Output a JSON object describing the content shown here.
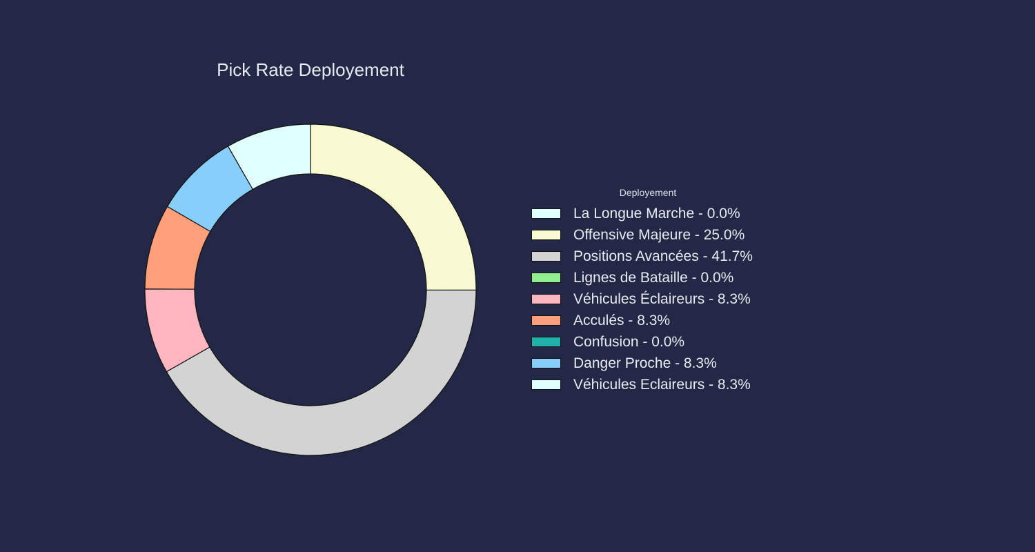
{
  "chart_data": {
    "type": "pie",
    "style": "donut",
    "title": "Pick Rate Deployement",
    "legend_title": "Deployement",
    "legend_position": "right",
    "start_angle_deg": 90,
    "direction": "clockwise",
    "background_color": "#222845",
    "edge_color": "#111111",
    "labels": [
      "La Longue Marche - 0.0%",
      "Offensive Majeure - 25.0%",
      "Positions Avancées - 41.7%",
      "Lignes de Bataille - 0.0%",
      "Véhicules Éclaireurs - 8.3%",
      "Acculés - 8.3%",
      "Confusion - 0.0%",
      "Danger Proche - 8.3%",
      "Véhicules Eclaireurs - 8.3%"
    ],
    "values": [
      0.0,
      25.0,
      41.7,
      0.0,
      8.3,
      8.3,
      0.0,
      8.3,
      8.3
    ],
    "colors": [
      "#e0ffff",
      "#fafad2",
      "#d3d3d3",
      "#90ee90",
      "#ffb6c1",
      "#ffa07a",
      "#20b2aa",
      "#87cefa",
      "#e0ffff"
    ],
    "draw_order": [
      8,
      7,
      5,
      4,
      2,
      1,
      0,
      3,
      6
    ]
  }
}
